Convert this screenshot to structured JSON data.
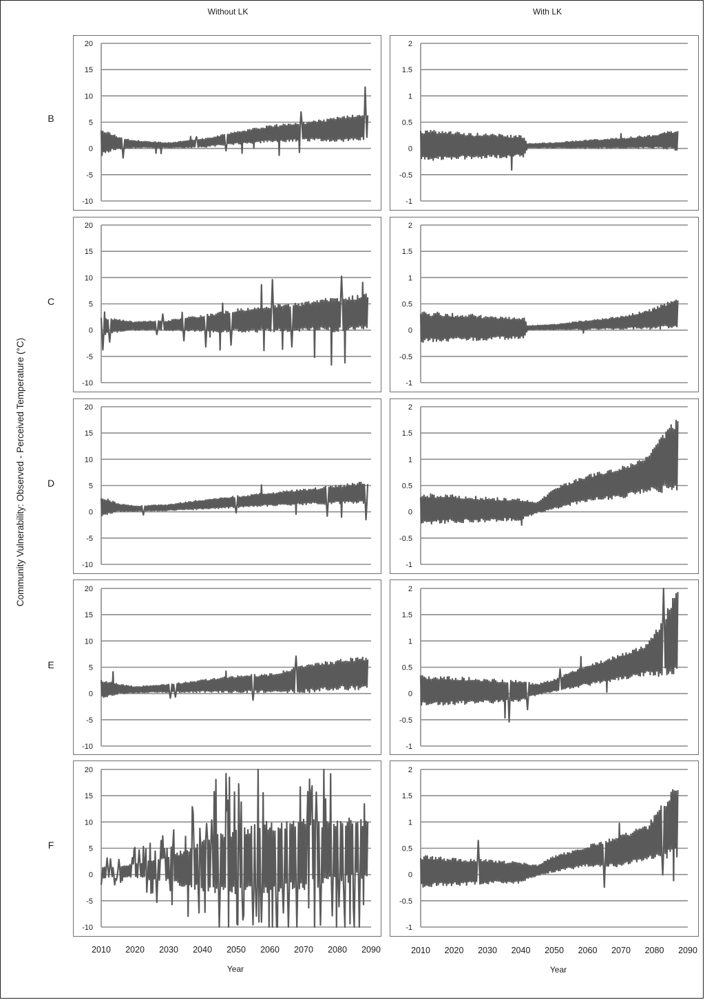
{
  "figure": {
    "column_titles": [
      "Without LK",
      "With LK"
    ],
    "ylabel": "Community Vulnerability:  Observed - Perceived Temperature (°C)",
    "xlabel": "Year",
    "row_labels": [
      "B",
      "C",
      "D",
      "E",
      "F"
    ],
    "x_ticks": [
      2010,
      2020,
      2030,
      2040,
      2050,
      2060,
      2070,
      2080,
      2090
    ],
    "line_color": "#5a5a5a",
    "grid_color": "#8c8c8c"
  },
  "chart_data": [
    {
      "type": "line",
      "row": "B",
      "column": "Without LK",
      "xlim": [
        2010,
        2090
      ],
      "ylim": [
        -10,
        20
      ],
      "yticks": [
        20,
        15,
        10,
        5,
        0,
        -5,
        -10
      ],
      "yticks_text": [
        "20",
        "15",
        "10",
        "5",
        "0",
        "-5",
        "-10"
      ],
      "grid": true,
      "series_points": [
        [
          2010,
          1.0
        ],
        [
          2013,
          1.2
        ],
        [
          2015,
          1.0
        ],
        [
          2020,
          0.8
        ],
        [
          2030,
          0.6
        ],
        [
          2040,
          1.0
        ],
        [
          2050,
          2.0
        ],
        [
          2060,
          2.8
        ],
        [
          2070,
          3.2
        ],
        [
          2080,
          3.6
        ],
        [
          2089,
          4.2
        ]
      ],
      "amplitude_points": [
        [
          2010,
          2.5
        ],
        [
          2015,
          1.2
        ],
        [
          2020,
          0.7
        ],
        [
          2030,
          0.5
        ],
        [
          2040,
          0.8
        ],
        [
          2050,
          1.2
        ],
        [
          2060,
          1.6
        ],
        [
          2070,
          1.8
        ],
        [
          2080,
          2.3
        ],
        [
          2089,
          2.6
        ]
      ]
    },
    {
      "type": "line",
      "row": "B",
      "column": "With LK",
      "xlim": [
        2010,
        2090
      ],
      "ylim": [
        -1,
        2
      ],
      "yticks": [
        2,
        1.5,
        1,
        0.5,
        0,
        -0.5,
        -1
      ],
      "yticks_text": [
        "2",
        "1.5",
        "1",
        "0.5",
        "0",
        "-0.5",
        "-1"
      ],
      "grid": true,
      "series_points": [
        [
          2010,
          0.06
        ],
        [
          2025,
          0.05
        ],
        [
          2041,
          0.04
        ],
        [
          2042,
          0.05
        ],
        [
          2050,
          0.06
        ],
        [
          2060,
          0.08
        ],
        [
          2070,
          0.1
        ],
        [
          2080,
          0.13
        ],
        [
          2087,
          0.16
        ]
      ],
      "amplitude_points": [
        [
          2010,
          0.3
        ],
        [
          2041,
          0.2
        ],
        [
          2042,
          0.04
        ],
        [
          2050,
          0.05
        ],
        [
          2060,
          0.08
        ],
        [
          2070,
          0.1
        ],
        [
          2080,
          0.13
        ],
        [
          2087,
          0.2
        ]
      ]
    },
    {
      "type": "line",
      "row": "C",
      "column": "Without LK",
      "xlim": [
        2010,
        2090
      ],
      "ylim": [
        -10,
        20
      ],
      "yticks": [
        20,
        15,
        10,
        5,
        0,
        -5,
        -10
      ],
      "yticks_text": [
        "20",
        "15",
        "10",
        "5",
        "0",
        "-5",
        "-10"
      ],
      "grid": true,
      "series_points": [
        [
          2010,
          0.8
        ],
        [
          2020,
          0.8
        ],
        [
          2030,
          0.9
        ],
        [
          2040,
          1.3
        ],
        [
          2050,
          1.8
        ],
        [
          2060,
          2.2
        ],
        [
          2070,
          2.6
        ],
        [
          2080,
          3.0
        ],
        [
          2089,
          3.4
        ]
      ],
      "amplitude_points": [
        [
          2010,
          1.8
        ],
        [
          2020,
          0.8
        ],
        [
          2030,
          1.0
        ],
        [
          2040,
          1.6
        ],
        [
          2050,
          2.2
        ],
        [
          2060,
          2.6
        ],
        [
          2070,
          2.8
        ],
        [
          2080,
          3.3
        ],
        [
          2089,
          3.6
        ]
      ]
    },
    {
      "type": "line",
      "row": "C",
      "column": "With LK",
      "xlim": [
        2010,
        2090
      ],
      "ylim": [
        -1,
        2
      ],
      "yticks": [
        2,
        1.5,
        1,
        0.5,
        0,
        -0.5,
        -1
      ],
      "yticks_text": [
        "2",
        "1.5",
        "1",
        "0.5",
        "0",
        "-0.5",
        "-1"
      ],
      "grid": true,
      "series_points": [
        [
          2010,
          0.06
        ],
        [
          2041,
          0.04
        ],
        [
          2050,
          0.06
        ],
        [
          2060,
          0.1
        ],
        [
          2070,
          0.14
        ],
        [
          2080,
          0.22
        ],
        [
          2087,
          0.32
        ]
      ],
      "amplitude_points": [
        [
          2010,
          0.3
        ],
        [
          2041,
          0.2
        ],
        [
          2042,
          0.04
        ],
        [
          2050,
          0.05
        ],
        [
          2060,
          0.09
        ],
        [
          2070,
          0.12
        ],
        [
          2080,
          0.2
        ],
        [
          2087,
          0.3
        ]
      ]
    },
    {
      "type": "line",
      "row": "D",
      "column": "Without LK",
      "xlim": [
        2010,
        2090
      ],
      "ylim": [
        -10,
        20
      ],
      "yticks": [
        20,
        15,
        10,
        5,
        0,
        -5,
        -10
      ],
      "yticks_text": [
        "20",
        "15",
        "10",
        "5",
        "0",
        "-5",
        "-10"
      ],
      "grid": true,
      "series_points": [
        [
          2010,
          1.0
        ],
        [
          2015,
          0.8
        ],
        [
          2020,
          0.6
        ],
        [
          2030,
          0.8
        ],
        [
          2040,
          1.4
        ],
        [
          2050,
          1.9
        ],
        [
          2060,
          2.4
        ],
        [
          2070,
          2.8
        ],
        [
          2080,
          3.3
        ],
        [
          2089,
          3.7
        ]
      ],
      "amplitude_points": [
        [
          2010,
          2.0
        ],
        [
          2015,
          0.8
        ],
        [
          2020,
          0.5
        ],
        [
          2030,
          0.6
        ],
        [
          2040,
          0.9
        ],
        [
          2050,
          1.1
        ],
        [
          2060,
          1.3
        ],
        [
          2070,
          1.5
        ],
        [
          2080,
          1.8
        ],
        [
          2089,
          2.2
        ]
      ]
    },
    {
      "type": "line",
      "row": "D",
      "column": "With LK",
      "xlim": [
        2010,
        2090
      ],
      "ylim": [
        -1,
        2
      ],
      "yticks": [
        2,
        1.5,
        1,
        0.5,
        0,
        -0.5,
        -1
      ],
      "yticks_text": [
        "2",
        "1.5",
        "1",
        "0.5",
        "0",
        "-0.5",
        "-1"
      ],
      "grid": true,
      "series_points": [
        [
          2010,
          0.06
        ],
        [
          2040,
          0.04
        ],
        [
          2045,
          0.08
        ],
        [
          2050,
          0.25
        ],
        [
          2060,
          0.45
        ],
        [
          2070,
          0.55
        ],
        [
          2078,
          0.72
        ],
        [
          2083,
          0.95
        ],
        [
          2087,
          1.1
        ]
      ],
      "amplitude_points": [
        [
          2010,
          0.3
        ],
        [
          2040,
          0.2
        ],
        [
          2045,
          0.1
        ],
        [
          2050,
          0.2
        ],
        [
          2060,
          0.25
        ],
        [
          2070,
          0.3
        ],
        [
          2078,
          0.35
        ],
        [
          2083,
          0.6
        ],
        [
          2087,
          0.75
        ]
      ]
    },
    {
      "type": "line",
      "row": "E",
      "column": "Without LK",
      "xlim": [
        2010,
        2090
      ],
      "ylim": [
        -10,
        20
      ],
      "yticks": [
        20,
        15,
        10,
        5,
        0,
        -5,
        -10
      ],
      "yticks_text": [
        "20",
        "15",
        "10",
        "5",
        "0",
        "-5",
        "-10"
      ],
      "grid": true,
      "series_points": [
        [
          2010,
          0.8
        ],
        [
          2015,
          0.9
        ],
        [
          2020,
          0.7
        ],
        [
          2030,
          1.0
        ],
        [
          2040,
          1.4
        ],
        [
          2050,
          1.8
        ],
        [
          2060,
          2.0
        ],
        [
          2070,
          2.7
        ],
        [
          2080,
          3.6
        ],
        [
          2089,
          3.8
        ]
      ],
      "amplitude_points": [
        [
          2010,
          1.8
        ],
        [
          2015,
          1.0
        ],
        [
          2020,
          0.6
        ],
        [
          2030,
          0.8
        ],
        [
          2040,
          1.2
        ],
        [
          2050,
          1.6
        ],
        [
          2060,
          1.8
        ],
        [
          2070,
          2.6
        ],
        [
          2080,
          2.9
        ],
        [
          2089,
          3.2
        ]
      ]
    },
    {
      "type": "line",
      "row": "E",
      "column": "With LK",
      "xlim": [
        2010,
        2090
      ],
      "ylim": [
        -1,
        2
      ],
      "yticks": [
        2,
        1.5,
        1,
        0.5,
        0,
        -0.5,
        -1
      ],
      "yticks_text": [
        "2",
        "1.5",
        "1",
        "0.5",
        "0",
        "-0.5",
        "-1"
      ],
      "grid": true,
      "series_points": [
        [
          2010,
          0.06
        ],
        [
          2040,
          0.04
        ],
        [
          2045,
          0.08
        ],
        [
          2050,
          0.15
        ],
        [
          2060,
          0.35
        ],
        [
          2070,
          0.5
        ],
        [
          2078,
          0.65
        ],
        [
          2083,
          0.9
        ],
        [
          2087,
          1.2
        ]
      ],
      "amplitude_points": [
        [
          2010,
          0.3
        ],
        [
          2040,
          0.2
        ],
        [
          2045,
          0.1
        ],
        [
          2050,
          0.12
        ],
        [
          2060,
          0.2
        ],
        [
          2070,
          0.25
        ],
        [
          2078,
          0.3
        ],
        [
          2083,
          0.6
        ],
        [
          2087,
          0.8
        ]
      ]
    },
    {
      "type": "line",
      "row": "F",
      "column": "Without LK",
      "xlim": [
        2010,
        2090
      ],
      "ylim": [
        -10,
        20
      ],
      "yticks": [
        20,
        15,
        10,
        5,
        0,
        -5,
        -10
      ],
      "yticks_text": [
        "20",
        "15",
        "10",
        "5",
        "0",
        "-5",
        "-10"
      ],
      "grid": true,
      "series_points": [
        [
          2010,
          0.3
        ],
        [
          2015,
          0.5
        ],
        [
          2020,
          0.8
        ],
        [
          2030,
          1.0
        ],
        [
          2040,
          1.6
        ],
        [
          2050,
          2.5
        ],
        [
          2060,
          3.2
        ],
        [
          2070,
          3.8
        ],
        [
          2080,
          4.5
        ],
        [
          2089,
          5.0
        ]
      ],
      "amplitude_points": [
        [
          2010,
          1.2
        ],
        [
          2015,
          0.8
        ],
        [
          2020,
          1.5
        ],
        [
          2030,
          2.5
        ],
        [
          2040,
          5.0
        ],
        [
          2050,
          6.5
        ],
        [
          2060,
          7.0
        ],
        [
          2070,
          6.8
        ],
        [
          2080,
          6.5
        ],
        [
          2089,
          5.5
        ]
      ]
    },
    {
      "type": "line",
      "row": "F",
      "column": "With LK",
      "xlim": [
        2010,
        2090
      ],
      "ylim": [
        -1,
        2
      ],
      "yticks": [
        2,
        1.5,
        1,
        0.5,
        0,
        -0.5,
        -1
      ],
      "yticks_text": [
        "2",
        "1.5",
        "1",
        "0.5",
        "0",
        "-0.5",
        "-1"
      ],
      "grid": true,
      "series_points": [
        [
          2010,
          0.06
        ],
        [
          2040,
          0.04
        ],
        [
          2045,
          0.08
        ],
        [
          2050,
          0.2
        ],
        [
          2060,
          0.35
        ],
        [
          2070,
          0.45
        ],
        [
          2078,
          0.6
        ],
        [
          2083,
          0.85
        ],
        [
          2087,
          1.05
        ]
      ],
      "amplitude_points": [
        [
          2010,
          0.3
        ],
        [
          2040,
          0.2
        ],
        [
          2045,
          0.1
        ],
        [
          2050,
          0.15
        ],
        [
          2060,
          0.2
        ],
        [
          2070,
          0.3
        ],
        [
          2078,
          0.35
        ],
        [
          2083,
          0.55
        ],
        [
          2087,
          0.75
        ]
      ]
    }
  ]
}
